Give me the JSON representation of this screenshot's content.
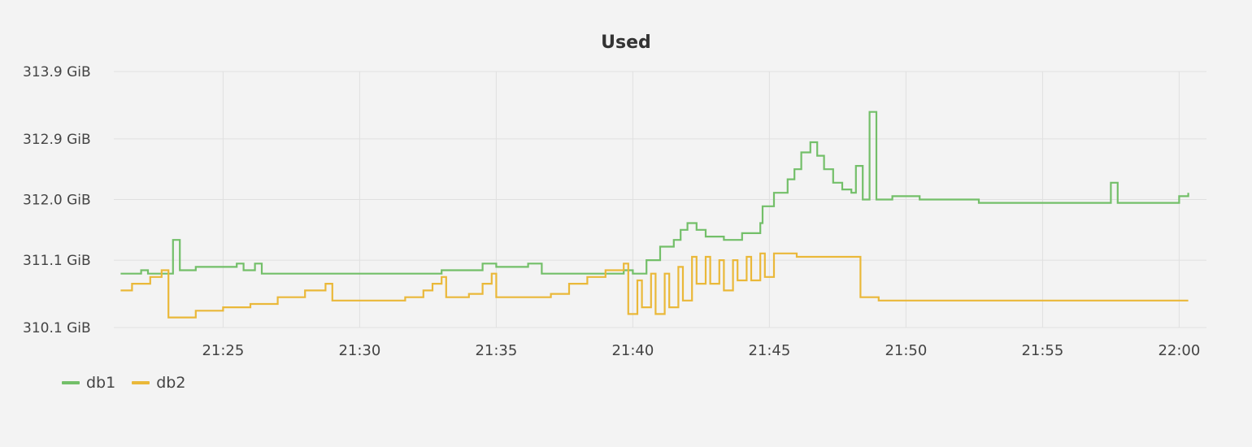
{
  "chart_data": {
    "type": "line",
    "title": "Used",
    "xlabel": "",
    "ylabel": "",
    "x_ticks": [
      "21:25",
      "21:30",
      "21:35",
      "21:40",
      "21:45",
      "21:50",
      "21:55",
      "22:00"
    ],
    "y_ticks": [
      "313.9 GiB",
      "312.9 GiB",
      "312.0 GiB",
      "311.1 GiB",
      "310.1 GiB"
    ],
    "ylim": [
      310.1,
      313.9
    ],
    "grid": true,
    "legend": "bottom-left",
    "series": [
      {
        "name": "db1",
        "color": "#73bf69",
        "points": [
          [
            "21:21:15",
            310.9
          ],
          [
            "21:22:00",
            310.95
          ],
          [
            "21:22:15",
            310.9
          ],
          [
            "21:22:45",
            310.9
          ],
          [
            "21:23:10",
            311.4
          ],
          [
            "21:23:25",
            310.95
          ],
          [
            "21:24:00",
            311.0
          ],
          [
            "21:25:30",
            311.05
          ],
          [
            "21:25:45",
            310.95
          ],
          [
            "21:26:10",
            311.05
          ],
          [
            "21:26:25",
            310.9
          ],
          [
            "21:28:00",
            310.9
          ],
          [
            "21:30:00",
            310.9
          ],
          [
            "21:33:00",
            310.95
          ],
          [
            "21:34:30",
            311.05
          ],
          [
            "21:35:00",
            311.0
          ],
          [
            "21:36:10",
            311.05
          ],
          [
            "21:36:40",
            310.9
          ],
          [
            "21:39:00",
            310.9
          ],
          [
            "21:39:40",
            310.95
          ],
          [
            "21:40:00",
            310.9
          ],
          [
            "21:40:30",
            311.1
          ],
          [
            "21:41:00",
            311.3
          ],
          [
            "21:41:30",
            311.4
          ],
          [
            "21:41:45",
            311.55
          ],
          [
            "21:42:00",
            311.65
          ],
          [
            "21:42:20",
            311.55
          ],
          [
            "21:42:40",
            311.45
          ],
          [
            "21:43:00",
            311.45
          ],
          [
            "21:43:20",
            311.4
          ],
          [
            "21:44:00",
            311.5
          ],
          [
            "21:44:20",
            311.5
          ],
          [
            "21:44:40",
            311.65
          ],
          [
            "21:44:45",
            311.9
          ],
          [
            "21:45:10",
            312.1
          ],
          [
            "21:45:40",
            312.3
          ],
          [
            "21:45:55",
            312.45
          ],
          [
            "21:46:10",
            312.7
          ],
          [
            "21:46:30",
            312.85
          ],
          [
            "21:46:45",
            312.65
          ],
          [
            "21:47:00",
            312.45
          ],
          [
            "21:47:20",
            312.25
          ],
          [
            "21:47:40",
            312.15
          ],
          [
            "21:48:00",
            312.1
          ],
          [
            "21:48:10",
            312.5
          ],
          [
            "21:48:25",
            312.0
          ],
          [
            "21:48:40",
            313.3
          ],
          [
            "21:48:55",
            312.0
          ],
          [
            "21:49:30",
            312.05
          ],
          [
            "21:50:30",
            312.0
          ],
          [
            "21:52:00",
            312.0
          ],
          [
            "21:52:40",
            311.95
          ],
          [
            "21:55:00",
            311.95
          ],
          [
            "21:56:30",
            311.95
          ],
          [
            "21:57:30",
            312.25
          ],
          [
            "21:57:45",
            311.95
          ],
          [
            "21:59:00",
            311.95
          ],
          [
            "22:00:00",
            312.05
          ],
          [
            "22:00:20",
            312.1
          ]
        ]
      },
      {
        "name": "db2",
        "color": "#eab839",
        "points": [
          [
            "21:21:15",
            310.65
          ],
          [
            "21:21:40",
            310.75
          ],
          [
            "21:22:20",
            310.85
          ],
          [
            "21:22:45",
            310.95
          ],
          [
            "21:23:00",
            310.25
          ],
          [
            "21:23:30",
            310.25
          ],
          [
            "21:24:00",
            310.35
          ],
          [
            "21:25:00",
            310.4
          ],
          [
            "21:26:00",
            310.45
          ],
          [
            "21:27:00",
            310.55
          ],
          [
            "21:28:00",
            310.65
          ],
          [
            "21:28:45",
            310.75
          ],
          [
            "21:29:00",
            310.5
          ],
          [
            "21:30:00",
            310.5
          ],
          [
            "21:31:00",
            310.5
          ],
          [
            "21:31:40",
            310.55
          ],
          [
            "21:32:20",
            310.65
          ],
          [
            "21:32:40",
            310.75
          ],
          [
            "21:33:00",
            310.85
          ],
          [
            "21:33:10",
            310.55
          ],
          [
            "21:34:00",
            310.6
          ],
          [
            "21:34:30",
            310.75
          ],
          [
            "21:34:50",
            310.9
          ],
          [
            "21:35:00",
            310.55
          ],
          [
            "21:36:00",
            310.55
          ],
          [
            "21:37:00",
            310.6
          ],
          [
            "21:37:40",
            310.75
          ],
          [
            "21:38:20",
            310.85
          ],
          [
            "21:39:00",
            310.95
          ],
          [
            "21:39:40",
            311.05
          ],
          [
            "21:39:50",
            310.3
          ],
          [
            "21:40:10",
            310.8
          ],
          [
            "21:40:20",
            310.4
          ],
          [
            "21:40:40",
            310.9
          ],
          [
            "21:40:50",
            310.3
          ],
          [
            "21:41:10",
            310.9
          ],
          [
            "21:41:20",
            310.4
          ],
          [
            "21:41:40",
            311.0
          ],
          [
            "21:41:50",
            310.5
          ],
          [
            "21:42:10",
            311.15
          ],
          [
            "21:42:20",
            310.75
          ],
          [
            "21:42:40",
            311.15
          ],
          [
            "21:42:50",
            310.75
          ],
          [
            "21:43:10",
            311.1
          ],
          [
            "21:43:20",
            310.65
          ],
          [
            "21:43:40",
            311.1
          ],
          [
            "21:43:50",
            310.8
          ],
          [
            "21:44:10",
            311.15
          ],
          [
            "21:44:20",
            310.8
          ],
          [
            "21:44:40",
            311.2
          ],
          [
            "21:44:50",
            310.85
          ],
          [
            "21:45:10",
            311.2
          ],
          [
            "21:45:40",
            311.2
          ],
          [
            "21:46:00",
            311.15
          ],
          [
            "21:48:15",
            311.15
          ],
          [
            "21:48:20",
            310.55
          ],
          [
            "21:49:00",
            310.5
          ],
          [
            "21:52:00",
            310.5
          ],
          [
            "21:55:00",
            310.5
          ],
          [
            "21:58:00",
            310.5
          ],
          [
            "22:00:20",
            310.5
          ]
        ]
      }
    ]
  }
}
